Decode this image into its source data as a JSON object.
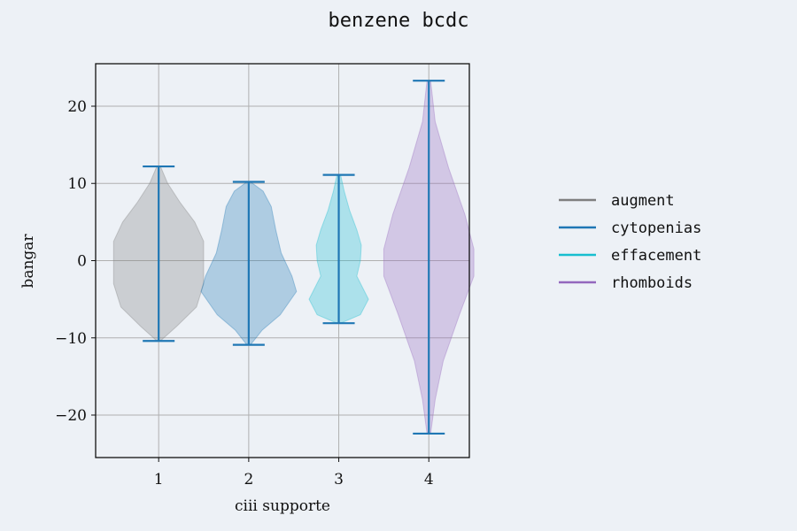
{
  "chart_data": {
    "type": "violin",
    "title": "benzene bcdc",
    "xlabel": "ciii supporte",
    "ylabel": "bangar",
    "ylim": [
      -25.5,
      25.5
    ],
    "xlim": [
      0.3,
      4.45
    ],
    "x_ticks": [
      1,
      2,
      3,
      4
    ],
    "x_tick_labels": [
      "1",
      "2",
      "3",
      "4"
    ],
    "y_ticks": [
      -20,
      -10,
      0,
      10,
      20
    ],
    "y_tick_labels": [
      "−20",
      "−10",
      "0",
      "10",
      "20"
    ],
    "grid": true,
    "legend_position": "right",
    "whisker_color": "#1f77b4",
    "series": [
      {
        "name": "augment",
        "position": 1,
        "color": "#7f7f7f",
        "min": -10.4,
        "max": 12.2,
        "profile": [
          [
            -10.4,
            0.02
          ],
          [
            -8.5,
            0.2
          ],
          [
            -6,
            0.42
          ],
          [
            -3,
            0.5
          ],
          [
            0,
            0.5
          ],
          [
            2.5,
            0.5
          ],
          [
            5,
            0.4
          ],
          [
            7.5,
            0.24
          ],
          [
            10,
            0.1
          ],
          [
            12.2,
            0.02
          ]
        ]
      },
      {
        "name": "cytopenias",
        "position": 2,
        "color": "#1f77b4",
        "min": -10.9,
        "max": 10.2,
        "profile": [
          [
            -10.9,
            0.02
          ],
          [
            -9,
            0.15
          ],
          [
            -7,
            0.35
          ],
          [
            -4,
            0.53
          ],
          [
            -2,
            0.48
          ],
          [
            1,
            0.36
          ],
          [
            4,
            0.3
          ],
          [
            7,
            0.25
          ],
          [
            9,
            0.16
          ],
          [
            10.2,
            0.02
          ]
        ]
      },
      {
        "name": "effacement",
        "position": 3,
        "color": "#17becf",
        "min": -8.1,
        "max": 11.1,
        "profile": [
          [
            -8.1,
            0.02
          ],
          [
            -7,
            0.24
          ],
          [
            -5,
            0.33
          ],
          [
            -2,
            0.2
          ],
          [
            0,
            0.24
          ],
          [
            2,
            0.25
          ],
          [
            4,
            0.2
          ],
          [
            6.5,
            0.12
          ],
          [
            9,
            0.06
          ],
          [
            11.1,
            0.02
          ]
        ]
      },
      {
        "name": "rhomboids",
        "position": 4,
        "color": "#9467bd",
        "min": -22.4,
        "max": 23.3,
        "profile": [
          [
            -22.4,
            0.02
          ],
          [
            -18,
            0.07
          ],
          [
            -13,
            0.16
          ],
          [
            -7,
            0.34
          ],
          [
            -2,
            0.5
          ],
          [
            1.5,
            0.5
          ],
          [
            6,
            0.4
          ],
          [
            12,
            0.22
          ],
          [
            18,
            0.07
          ],
          [
            23.3,
            0.02
          ]
        ]
      }
    ]
  }
}
